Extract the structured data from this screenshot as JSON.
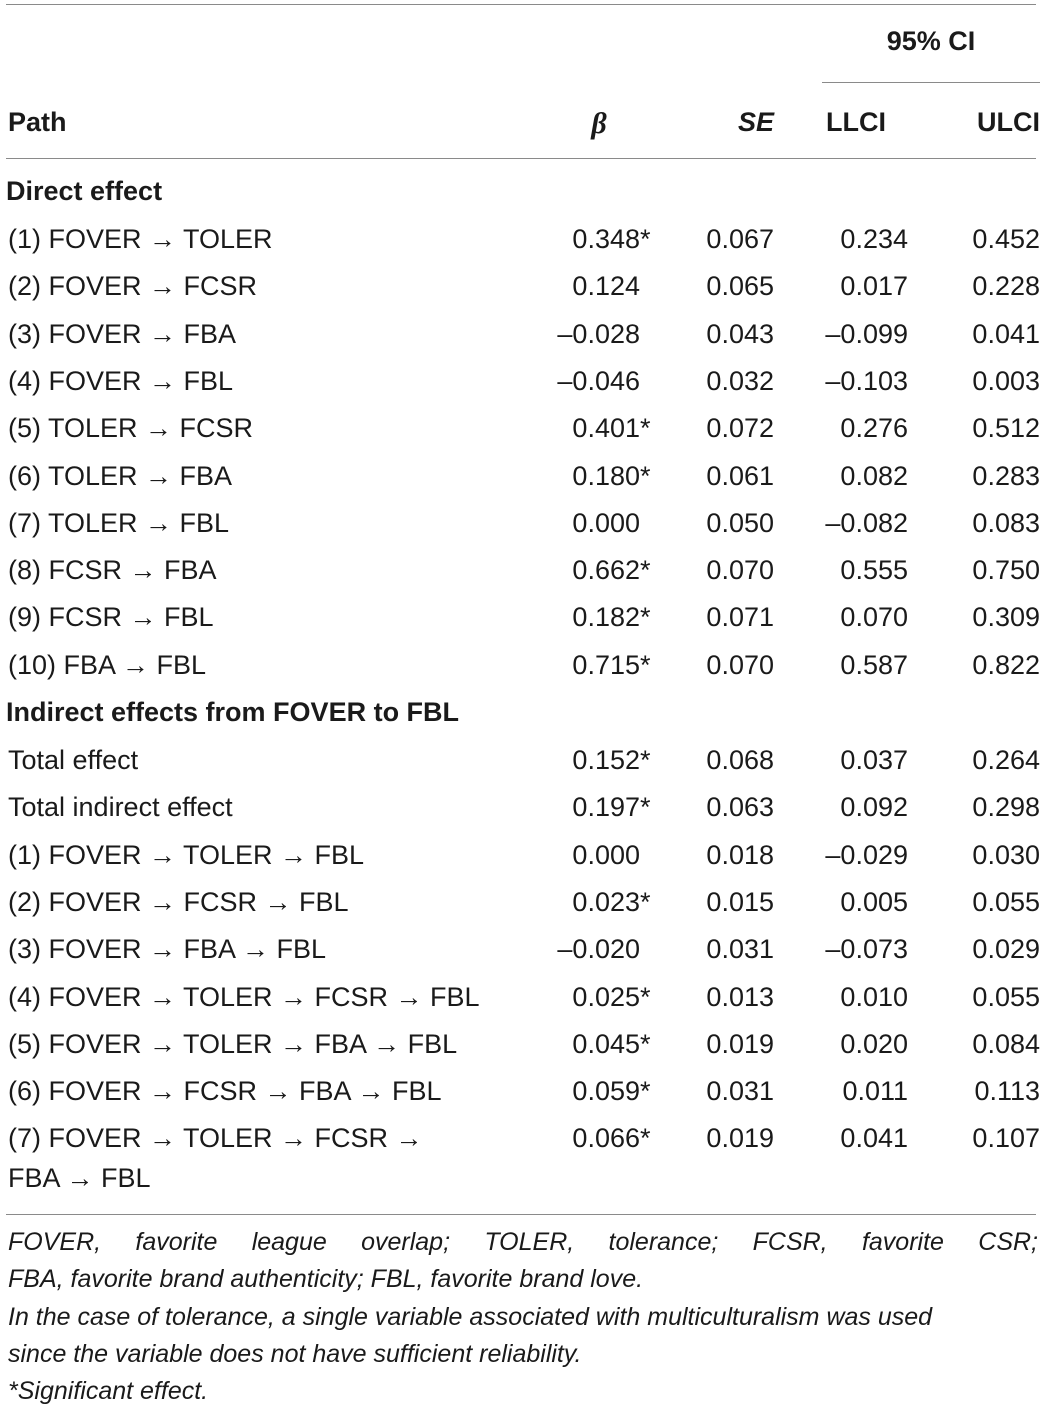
{
  "table": {
    "ci_header": "95% CI",
    "columns": {
      "path": "Path",
      "beta": "β",
      "se": "SE",
      "llci": "LLCI",
      "ulci": "ULCI"
    },
    "sections": [
      {
        "title": "Direct effect",
        "rows": [
          {
            "path": "(1) FOVER → TOLER",
            "beta": "0.348",
            "sig": "*",
            "se": "0.067",
            "llci": "0.234",
            "ulci": "0.452"
          },
          {
            "path": "(2) FOVER → FCSR",
            "beta": "0.124",
            "sig": "",
            "se": "0.065",
            "llci": "0.017",
            "ulci": "0.228"
          },
          {
            "path": "(3) FOVER → FBA",
            "beta": "–0.028",
            "sig": "",
            "se": "0.043",
            "llci": "–0.099",
            "ulci": "0.041"
          },
          {
            "path": "(4) FOVER → FBL",
            "beta": "–0.046",
            "sig": "",
            "se": "0.032",
            "llci": "–0.103",
            "ulci": "0.003"
          },
          {
            "path": "(5) TOLER → FCSR",
            "beta": "0.401",
            "sig": "*",
            "se": "0.072",
            "llci": "0.276",
            "ulci": "0.512"
          },
          {
            "path": "(6) TOLER → FBA",
            "beta": "0.180",
            "sig": "*",
            "se": "0.061",
            "llci": "0.082",
            "ulci": "0.283"
          },
          {
            "path": "(7) TOLER → FBL",
            "beta": "0.000",
            "sig": "",
            "se": "0.050",
            "llci": "–0.082",
            "ulci": "0.083"
          },
          {
            "path": "(8) FCSR → FBA",
            "beta": "0.662",
            "sig": "*",
            "se": "0.070",
            "llci": "0.555",
            "ulci": "0.750"
          },
          {
            "path": "(9) FCSR → FBL",
            "beta": "0.182",
            "sig": "*",
            "se": "0.071",
            "llci": "0.070",
            "ulci": "0.309"
          },
          {
            "path": "(10) FBA → FBL",
            "beta": "0.715",
            "sig": "*",
            "se": "0.070",
            "llci": "0.587",
            "ulci": "0.822"
          }
        ]
      },
      {
        "title": "Indirect effects from FOVER to FBL",
        "rows": [
          {
            "path": "Total effect",
            "beta": "0.152",
            "sig": "*",
            "se": "0.068",
            "llci": "0.037",
            "ulci": "0.264"
          },
          {
            "path": "Total indirect effect",
            "beta": "0.197",
            "sig": "*",
            "se": "0.063",
            "llci": "0.092",
            "ulci": "0.298"
          },
          {
            "path": "(1) FOVER → TOLER → FBL",
            "beta": "0.000",
            "sig": "",
            "se": "0.018",
            "llci": "–0.029",
            "ulci": "0.030"
          },
          {
            "path": "(2) FOVER → FCSR → FBL",
            "beta": "0.023",
            "sig": "*",
            "se": "0.015",
            "llci": "0.005",
            "ulci": "0.055"
          },
          {
            "path": "(3) FOVER → FBA → FBL",
            "beta": "–0.020",
            "sig": "",
            "se": "0.031",
            "llci": "–0.073",
            "ulci": "0.029"
          },
          {
            "path": "(4) FOVER → TOLER → FCSR → FBL",
            "beta": "0.025",
            "sig": "*",
            "se": "0.013",
            "llci": "0.010",
            "ulci": "0.055"
          },
          {
            "path": "(5) FOVER → TOLER → FBA → FBL",
            "beta": "0.045",
            "sig": "*",
            "se": "0.019",
            "llci": "0.020",
            "ulci": "0.084"
          },
          {
            "path": "(6) FOVER → FCSR → FBA → FBL",
            "beta": "0.059",
            "sig": "*",
            "se": "0.031",
            "llci": "0.011",
            "ulci": "0.113"
          },
          {
            "path": "(7) FOVER → TOLER → FCSR →",
            "path_cont": "FBA → FBL",
            "beta": "0.066",
            "sig": "*",
            "se": "0.019",
            "llci": "0.041",
            "ulci": "0.107"
          }
        ]
      }
    ]
  },
  "footnotes": {
    "abbrev_line1": "FOVER, favorite league overlap; TOLER, tolerance; FCSR, favorite CSR;",
    "abbrev_line2": "FBA, favorite brand authenticity; FBL, favorite brand love.",
    "tolerance_line1": "In the case of tolerance, a single variable associated with multiculturalism was used",
    "tolerance_line2": "since the variable does not have sufficient reliability.",
    "significance": "*Significant effect."
  }
}
